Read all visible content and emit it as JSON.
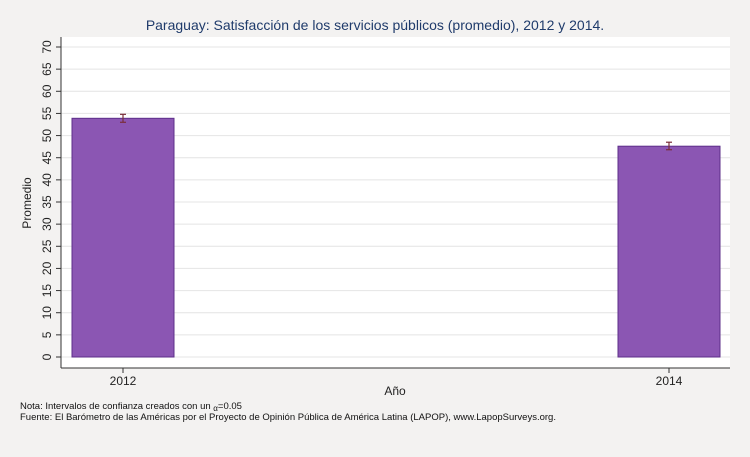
{
  "chart_data": {
    "type": "bar",
    "title": "Paraguay: Satisfacción de los servicios públicos (promedio), 2012 y 2014.",
    "xlabel": "Año",
    "ylabel": "Promedio",
    "categories": [
      "2012",
      "2014"
    ],
    "values": [
      53.9,
      47.6
    ],
    "error_bars": [
      {
        "low": 53.0,
        "high": 54.8
      },
      {
        "low": 46.8,
        "high": 48.5
      }
    ],
    "ylim": [
      0,
      70
    ],
    "yticks": [
      0,
      5,
      10,
      15,
      20,
      25,
      30,
      35,
      40,
      45,
      50,
      55,
      60,
      65,
      70
    ],
    "grid": true,
    "colors": {
      "bar_fill": "#8b56b3",
      "bar_edge": "#5e2f8a",
      "error_bar": "#7a2e3a",
      "gridline": "#e4e4e4",
      "plot_background": "#ffffff",
      "page_background": "#f3f2f1",
      "title": "#1f3b6b"
    }
  },
  "notes": {
    "nota_prefix": "Nota: Intervalos de confianza creados con un ",
    "nota_alpha_symbol": "α",
    "nota_suffix": "=0.05",
    "fuente": "Fuente: El Barómetro de las Américas por el Proyecto de Opinión Pública de América Latina (LAPOP), www.LapopSurveys.org."
  }
}
